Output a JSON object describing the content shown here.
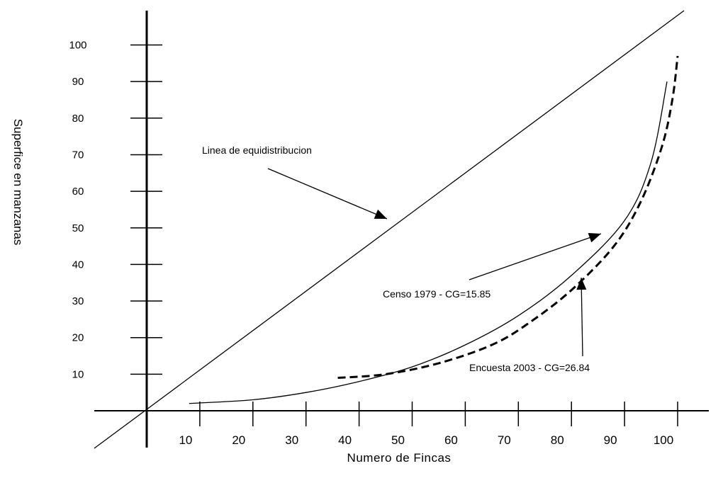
{
  "chart_data": {
    "type": "line",
    "title": "",
    "xlabel": "Numero de Fincas",
    "ylabel": "Superfice en manzanas",
    "x_ticks": [
      "10",
      "20",
      "30",
      "40",
      "50",
      "60",
      "70",
      "80",
      "90",
      "100"
    ],
    "y_ticks": [
      "10",
      "20",
      "30",
      "40",
      "50",
      "60",
      "70",
      "80",
      "90",
      "100"
    ],
    "grid": false,
    "series": [
      {
        "name": "Censo 1979 - CG=15.85",
        "style": "solid",
        "x": [
          8,
          20,
          30,
          40,
          50,
          60,
          70,
          80,
          90,
          95,
          98
        ],
        "y": [
          2,
          3,
          5,
          8,
          12,
          18,
          26,
          37,
          52,
          68,
          90
        ]
      },
      {
        "name": "Encuesta 2003 - CG=26.84",
        "style": "dashed",
        "x": [
          36,
          45,
          55,
          65,
          72,
          80,
          88,
          93,
          97,
          99,
          100
        ],
        "y": [
          9,
          10,
          13,
          18,
          24,
          33,
          45,
          57,
          72,
          85,
          97
        ]
      }
    ],
    "annotations": [
      {
        "label": "Linea de equidistribucion"
      },
      {
        "label": "Censo 1979 - CG=15.85"
      },
      {
        "label": "Encuesta 2003 - CG=26.84"
      }
    ]
  }
}
